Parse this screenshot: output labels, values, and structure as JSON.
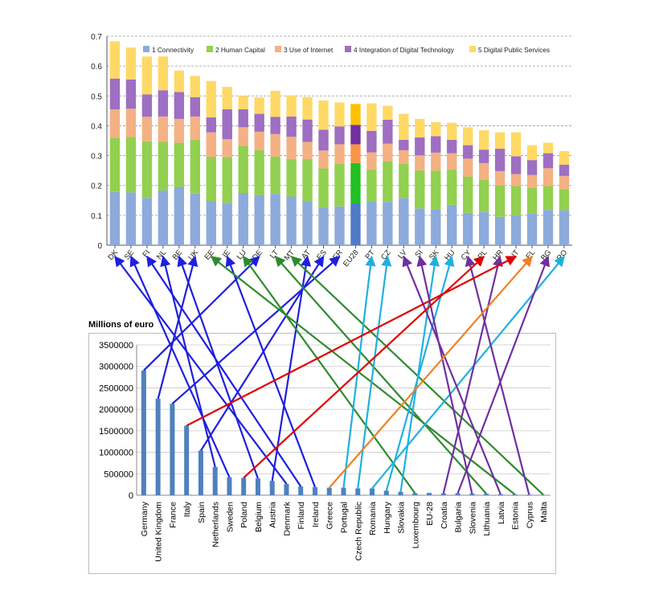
{
  "chart_data": [
    {
      "type": "bar",
      "stacked": true,
      "categories": [
        "DK",
        "SE",
        "FI",
        "NL",
        "BE",
        "UK",
        "EE",
        "IE",
        "LU",
        "DE",
        "LT",
        "MT",
        "AT",
        "ES",
        "FR",
        "EU28",
        "PT",
        "CZ",
        "LV",
        "SI",
        "SK",
        "HU",
        "CY",
        "PL",
        "HR",
        "IT",
        "EL",
        "BG",
        "RO"
      ],
      "highlight_category": "EU28",
      "ylim": [
        0,
        0.7
      ],
      "yticks": [
        "0",
        "0.1",
        "0.2",
        "0.3",
        "0.4",
        "0.5",
        "0.6",
        "0.7"
      ],
      "grid": true,
      "legend_position": "top",
      "series": [
        {
          "name": "1 Connectivity",
          "color": "#8eaadb",
          "highlight_color": "#4f7ac9",
          "values": [
            0.178,
            0.177,
            0.158,
            0.183,
            0.195,
            0.173,
            0.148,
            0.142,
            0.175,
            0.168,
            0.172,
            0.163,
            0.148,
            0.127,
            0.13,
            0.14,
            0.148,
            0.145,
            0.158,
            0.123,
            0.12,
            0.135,
            0.108,
            0.112,
            0.095,
            0.1,
            0.105,
            0.118,
            0.117
          ]
        },
        {
          "name": "2 Human Capital",
          "color": "#92d050",
          "highlight_color": "#22c022",
          "values": [
            0.182,
            0.185,
            0.19,
            0.163,
            0.148,
            0.18,
            0.148,
            0.153,
            0.158,
            0.15,
            0.125,
            0.125,
            0.14,
            0.13,
            0.143,
            0.135,
            0.105,
            0.135,
            0.115,
            0.128,
            0.13,
            0.118,
            0.122,
            0.108,
            0.105,
            0.098,
            0.088,
            0.08,
            0.07
          ]
        },
        {
          "name": "3 Use of Internet",
          "color": "#f4b183",
          "highlight_color": "#f79646",
          "values": [
            0.095,
            0.095,
            0.082,
            0.085,
            0.08,
            0.078,
            0.082,
            0.06,
            0.062,
            0.062,
            0.075,
            0.075,
            0.058,
            0.06,
            0.065,
            0.063,
            0.058,
            0.06,
            0.045,
            0.05,
            0.06,
            0.055,
            0.06,
            0.055,
            0.048,
            0.04,
            0.042,
            0.06,
            0.045
          ]
        },
        {
          "name": "4 Integration of Digital Technology",
          "color": "#9e6fc2",
          "highlight_color": "#7030a0",
          "values": [
            0.103,
            0.098,
            0.075,
            0.088,
            0.09,
            0.065,
            0.05,
            0.1,
            0.06,
            0.06,
            0.058,
            0.068,
            0.075,
            0.07,
            0.06,
            0.065,
            0.072,
            0.08,
            0.035,
            0.06,
            0.055,
            0.045,
            0.045,
            0.045,
            0.075,
            0.06,
            0.05,
            0.05,
            0.038
          ]
        },
        {
          "name": "5 Digital Public Services",
          "color": "#ffd966",
          "highlight_color": "#ffc000",
          "values": [
            0.125,
            0.107,
            0.127,
            0.113,
            0.072,
            0.071,
            0.122,
            0.075,
            0.045,
            0.055,
            0.087,
            0.071,
            0.075,
            0.098,
            0.08,
            0.07,
            0.092,
            0.047,
            0.087,
            0.062,
            0.047,
            0.057,
            0.06,
            0.065,
            0.055,
            0.08,
            0.05,
            0.035,
            0.045
          ]
        }
      ]
    },
    {
      "type": "bar",
      "title": "Millions of euro",
      "categories": [
        "Germany",
        "United Kingdom",
        "France",
        "Italy",
        "Spain",
        "Netherlands",
        "Sweden",
        "Poland",
        "Belgium",
        "Austria",
        "Denmark",
        "Finland",
        "Ireland",
        "Greece",
        "Portugal",
        "Czech Republic",
        "Romania",
        "Hungary",
        "Slovakia",
        "Luxembourg",
        "EU-28",
        "Croatia",
        "Bulgaria",
        "Slovenia",
        "Lithuania",
        "Latvia",
        "Estonia",
        "Cyprus",
        "Malta"
      ],
      "values": [
        2905000,
        2245000,
        2130000,
        1620000,
        1040000,
        660000,
        420000,
        405000,
        390000,
        335000,
        265000,
        205000,
        190000,
        175000,
        175000,
        160000,
        160000,
        105000,
        80000,
        50000,
        55000,
        45000,
        45000,
        40000,
        35000,
        25000,
        20000,
        15000,
        8000
      ],
      "ylim": [
        0,
        3500000
      ],
      "yticks": [
        "0",
        "500000",
        "1000000",
        "1500000",
        "2000000",
        "2500000",
        "3000000",
        "3500000"
      ],
      "grid": true,
      "bar_color": "#4f81bd"
    }
  ],
  "connections": [
    {
      "from": "Denmark",
      "to": "DK",
      "color": "#1f1fe0"
    },
    {
      "from": "Sweden",
      "to": "SE",
      "color": "#1f1fe0"
    },
    {
      "from": "Finland",
      "to": "FI",
      "color": "#1f1fe0"
    },
    {
      "from": "Netherlands",
      "to": "NL",
      "color": "#1f1fe0"
    },
    {
      "from": "Belgium",
      "to": "BE",
      "color": "#1f1fe0"
    },
    {
      "from": "United Kingdom",
      "to": "UK",
      "color": "#1f1fe0"
    },
    {
      "from": "Austria",
      "to": "AT",
      "color": "#1f1fe0"
    },
    {
      "from": "Germany",
      "to": "DE",
      "color": "#1f1fe0"
    },
    {
      "from": "Spain",
      "to": "ES",
      "color": "#1f1fe0"
    },
    {
      "from": "Ireland",
      "to": "IE",
      "color": "#1f1fe0"
    },
    {
      "from": "France",
      "to": "FR",
      "color": "#1f1fe0"
    },
    {
      "from": "Estonia",
      "to": "EE",
      "color": "#2e8b2e"
    },
    {
      "from": "Luxembourg",
      "to": "LU",
      "color": "#2e8b2e"
    },
    {
      "from": "Lithuania",
      "to": "LT",
      "color": "#2e8b2e"
    },
    {
      "from": "Malta",
      "to": "MT",
      "color": "#2e8b2e"
    },
    {
      "from": "Portugal",
      "to": "PT",
      "color": "#1fb0e0"
    },
    {
      "from": "Czech Republic",
      "to": "CZ",
      "color": "#1fb0e0"
    },
    {
      "from": "Slovakia",
      "to": "SK",
      "color": "#1fb0e0"
    },
    {
      "from": "Hungary",
      "to": "HU",
      "color": "#1fb0e0"
    },
    {
      "from": "Romania",
      "to": "RO",
      "color": "#1fb0e0"
    },
    {
      "from": "Latvia",
      "to": "LV",
      "color": "#7030a0"
    },
    {
      "from": "Slovenia",
      "to": "SI",
      "color": "#7030a0"
    },
    {
      "from": "Cyprus",
      "to": "CY",
      "color": "#7030a0"
    },
    {
      "from": "Croatia",
      "to": "HR",
      "color": "#7030a0"
    },
    {
      "from": "Bulgaria",
      "to": "BG",
      "color": "#7030a0"
    },
    {
      "from": "Poland",
      "to": "PL",
      "color": "#e00000"
    },
    {
      "from": "Italy",
      "to": "IT",
      "color": "#e00000"
    },
    {
      "from": "Greece",
      "to": "EL",
      "color": "#f08020"
    }
  ]
}
